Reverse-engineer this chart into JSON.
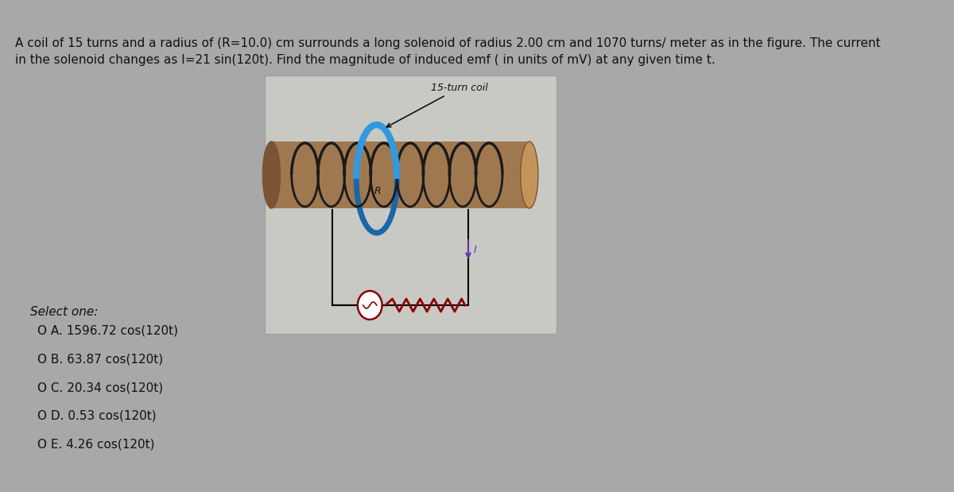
{
  "background_color": "#a8a8a8",
  "figure_bg_color": "#c8c8c8",
  "question_text_line1": "A coil of 15 turns and a radius of (R=10.0) cm surrounds a long solenoid of radius 2.00 cm and 1070 turns/ meter as in the figure. The current",
  "question_text_line2": "in the solenoid changes as I=21 sin(120t). Find the magnitude of induced emf ( in units of mV) at any given time t.",
  "select_one_label": "Select one:",
  "options": [
    {
      "label": "O A. 1596.72 cos(120t)",
      "key": "A"
    },
    {
      "label": "O B. 63.87 cos(120t)",
      "key": "B"
    },
    {
      "label": "O C. 20.34 cos(120t)",
      "key": "C"
    },
    {
      "label": "O D. 0.53 cos(120t)",
      "key": "D"
    },
    {
      "label": "O E. 4.26 cos(120t)",
      "key": "E"
    }
  ],
  "figure_label": "15-turn coil",
  "solenoid_color": "#a07850",
  "solenoid_color_dark": "#7a5535",
  "solenoid_color_light": "#c4955a",
  "coil_black": "#1a1a1a",
  "coil_blue": "#3399dd",
  "coil_blue_dark": "#1a66aa",
  "circuit_color": "#8B0000",
  "arrow_color": "#6633aa",
  "text_color": "#111111",
  "font_size_question": 11,
  "font_size_options": 11
}
